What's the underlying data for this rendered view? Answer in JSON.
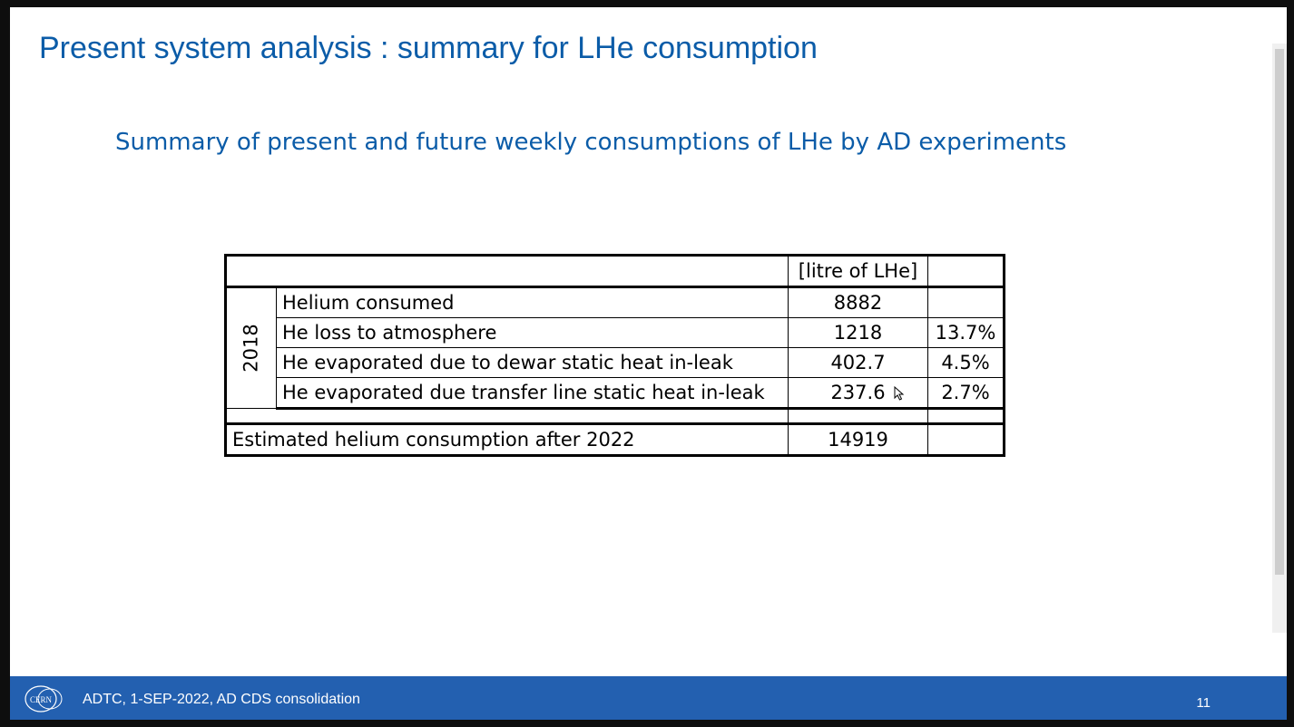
{
  "slide": {
    "title": "Present system analysis : summary for LHe consumption",
    "subtitle": "Summary of present and future weekly consumptions of LHe by AD experiments"
  },
  "table": {
    "header_unit": "[litre of LHe]",
    "year": "2018",
    "rows": [
      {
        "label": "Helium consumed",
        "value": "8882",
        "pct": ""
      },
      {
        "label": "He loss to atmosphere",
        "value": "1218",
        "pct": "13.7%"
      },
      {
        "label": "He evaporated due to dewar static heat in-leak",
        "value": "402.7",
        "pct": "4.5%"
      },
      {
        "label": "He evaporated due transfer line static heat in-leak",
        "value": "237.6",
        "pct": "2.7%"
      }
    ],
    "estimate": {
      "label": "Estimated helium consumption after 2022",
      "value": "14919",
      "pct": ""
    }
  },
  "footer": {
    "logo_text": "CERN",
    "text": "ADTC, 1-SEP-2022, AD CDS consolidation",
    "page_number": "11"
  },
  "colors": {
    "title": "#0b5ca8",
    "footer_bg": "#2360b0"
  },
  "icons": {
    "logo": "cern-logo-icon",
    "cursor": "mouse-pointer-icon"
  }
}
